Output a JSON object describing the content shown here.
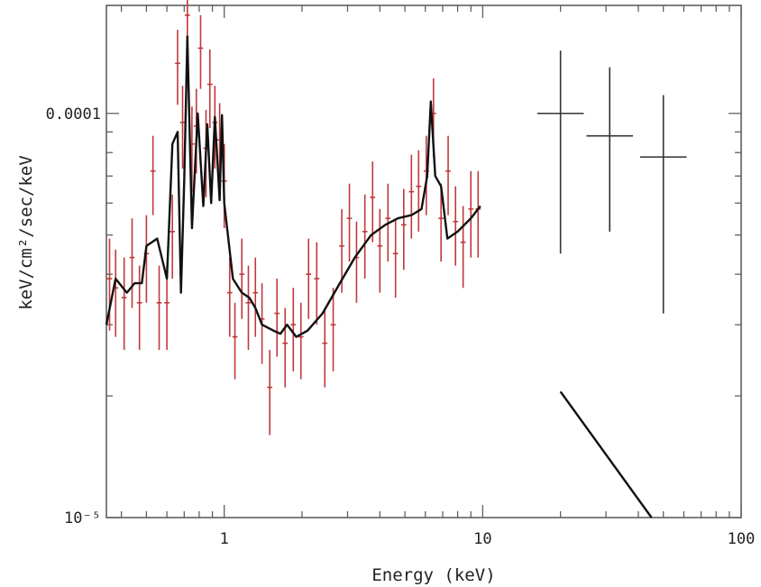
{
  "chart_data": {
    "type": "scatter",
    "title": "",
    "xlabel": "Energy (keV)",
    "ylabel": "keV/cm²/sec/keV",
    "x_scale": "log",
    "y_scale": "log",
    "xlim": [
      0.35,
      100
    ],
    "ylim": [
      1e-05,
      0.000185
    ],
    "grid": false,
    "x_ticks": [
      {
        "value": 1,
        "label": "1"
      },
      {
        "value": 10,
        "label": "10"
      },
      {
        "value": 100,
        "label": "100"
      }
    ],
    "y_ticks": [
      {
        "value": 0.0001,
        "label": "0.0001"
      },
      {
        "value": 1e-05,
        "label": "10⁻⁵"
      }
    ],
    "series": [
      {
        "style": "errorbars",
        "color": "#c0393b",
        "points": [
          [
            0.36,
            3.9e-05,
            0.01,
            1e-05
          ],
          [
            0.38,
            3.7e-05,
            0.01,
            9e-06
          ],
          [
            0.41,
            3.5e-05,
            0.01,
            9e-06
          ],
          [
            0.44,
            4.4e-05,
            0.01,
            1.1e-05
          ],
          [
            0.47,
            3.4e-05,
            0.01,
            8e-06
          ],
          [
            0.5,
            4.5e-05,
            0.01,
            1.1e-05
          ],
          [
            0.53,
            7.2e-05,
            0.01,
            1.6e-05
          ],
          [
            0.56,
            3.4e-05,
            0.01,
            8e-06
          ],
          [
            0.6,
            3.4e-05,
            0.01,
            8e-06
          ],
          [
            0.63,
            5.1e-05,
            0.01,
            1.2e-05
          ],
          [
            0.66,
            0.000133,
            0.01,
            2.8e-05
          ],
          [
            0.69,
            9.5e-05,
            0.01,
            2.2e-05
          ],
          [
            0.72,
            0.000175,
            0.01,
            3.5e-05
          ],
          [
            0.75,
            8.4e-05,
            0.01,
            2e-05
          ],
          [
            0.78,
            9.3e-05,
            0.01,
            2.2e-05
          ],
          [
            0.81,
            0.000145,
            0.01,
            3e-05
          ],
          [
            0.85,
            8.2e-05,
            0.01,
            2e-05
          ],
          [
            0.88,
            0.000118,
            0.01,
            2.6e-05
          ],
          [
            0.92,
            9.5e-05,
            0.01,
            2.2e-05
          ],
          [
            0.96,
            8.6e-05,
            0.01,
            2e-05
          ],
          [
            1.0,
            6.8e-05,
            0.01,
            1.6e-05
          ],
          [
            1.05,
            3.6e-05,
            0.01,
            8e-06
          ],
          [
            1.1,
            2.8e-05,
            0.01,
            6e-06
          ],
          [
            1.17,
            4e-05,
            0.01,
            9e-06
          ],
          [
            1.24,
            3.4e-05,
            0.01,
            8e-06
          ],
          [
            1.32,
            3.6e-05,
            0.01,
            8e-06
          ],
          [
            1.4,
            3.1e-05,
            0.01,
            7e-06
          ],
          [
            1.5,
            2.1e-05,
            0.01,
            5e-06
          ],
          [
            1.6,
            3.2e-05,
            0.01,
            7e-06
          ],
          [
            1.72,
            2.7e-05,
            0.01,
            6e-06
          ],
          [
            1.85,
            3e-05,
            0.01,
            7e-06
          ],
          [
            1.98,
            2.8e-05,
            0.01,
            6e-06
          ],
          [
            2.12,
            4e-05,
            0.01,
            9e-06
          ],
          [
            2.28,
            3.9e-05,
            0.01,
            9e-06
          ],
          [
            2.45,
            2.7e-05,
            0.01,
            6e-06
          ],
          [
            2.64,
            3e-05,
            0.01,
            7e-06
          ],
          [
            2.85,
            4.7e-05,
            0.01,
            1.1e-05
          ],
          [
            3.05,
            5.5e-05,
            0.01,
            1.2e-05
          ],
          [
            3.25,
            4.4e-05,
            0.01,
            1e-05
          ],
          [
            3.5,
            5.1e-05,
            0.01,
            1.2e-05
          ],
          [
            3.75,
            6.2e-05,
            0.01,
            1.4e-05
          ],
          [
            4.0,
            4.7e-05,
            0.01,
            1.1e-05
          ],
          [
            4.3,
            5.5e-05,
            0.01,
            1.2e-05
          ],
          [
            4.6,
            4.5e-05,
            0.01,
            1e-05
          ],
          [
            4.95,
            5.3e-05,
            0.01,
            1.2e-05
          ],
          [
            5.3,
            6.4e-05,
            0.01,
            1.5e-05
          ],
          [
            5.65,
            6.6e-05,
            0.01,
            1.5e-05
          ],
          [
            6.05,
            7.2e-05,
            0.01,
            1.6e-05
          ],
          [
            6.45,
            0.0001,
            0.01,
            2.2e-05
          ],
          [
            6.9,
            5.5e-05,
            0.01,
            1.2e-05
          ],
          [
            7.35,
            7.2e-05,
            0.01,
            1.6e-05
          ],
          [
            7.85,
            5.4e-05,
            0.01,
            1.2e-05
          ],
          [
            8.4,
            4.8e-05,
            0.01,
            1.1e-05
          ],
          [
            9.0,
            5.8e-05,
            0.01,
            1.4e-05
          ],
          [
            9.6,
            5.8e-05,
            0.01,
            1.4e-05
          ]
        ]
      },
      {
        "style": "errorbars",
        "color": "#333333",
        "points": [
          [
            20,
            0.0001,
            0.09,
            5.5e-05,
            4.3e-05
          ],
          [
            31,
            8.8e-05,
            0.09,
            3.7e-05,
            4.2e-05
          ],
          [
            50,
            7.8e-05,
            0.09,
            4.6e-05,
            3.3e-05
          ]
        ]
      },
      {
        "style": "line",
        "color": "#111111",
        "points": [
          [
            0.35,
            3e-05
          ],
          [
            0.38,
            3.9e-05
          ],
          [
            0.42,
            3.6e-05
          ],
          [
            0.45,
            3.8e-05
          ],
          [
            0.48,
            3.8e-05
          ],
          [
            0.5,
            4.7e-05
          ],
          [
            0.55,
            4.9e-05
          ],
          [
            0.6,
            3.9e-05
          ],
          [
            0.63,
            8.4e-05
          ],
          [
            0.66,
            9e-05
          ],
          [
            0.68,
            3.6e-05
          ],
          [
            0.7,
            6.8e-05
          ],
          [
            0.72,
            0.000155
          ],
          [
            0.75,
            5.2e-05
          ],
          [
            0.79,
            0.0001
          ],
          [
            0.83,
            5.9e-05
          ],
          [
            0.86,
            9.4e-05
          ],
          [
            0.89,
            6e-05
          ],
          [
            0.92,
            9.8e-05
          ],
          [
            0.96,
            6.1e-05
          ],
          [
            0.98,
            9.9e-05
          ],
          [
            1.0,
            6e-05
          ],
          [
            1.08,
            3.9e-05
          ],
          [
            1.17,
            3.6e-05
          ],
          [
            1.25,
            3.5e-05
          ],
          [
            1.32,
            3.3e-05
          ],
          [
            1.4,
            3e-05
          ],
          [
            1.55,
            2.9e-05
          ],
          [
            1.65,
            2.85e-05
          ],
          [
            1.75,
            3e-05
          ],
          [
            1.9,
            2.8e-05
          ],
          [
            2.1,
            2.9e-05
          ],
          [
            2.4,
            3.2e-05
          ],
          [
            2.8,
            3.8e-05
          ],
          [
            3.2,
            4.4e-05
          ],
          [
            3.7,
            5e-05
          ],
          [
            4.2,
            5.3e-05
          ],
          [
            4.7,
            5.5e-05
          ],
          [
            5.3,
            5.6e-05
          ],
          [
            5.8,
            5.8e-05
          ],
          [
            6.1,
            7e-05
          ],
          [
            6.3,
            0.000107
          ],
          [
            6.55,
            7e-05
          ],
          [
            6.9,
            6.6e-05
          ],
          [
            7.3,
            4.9e-05
          ],
          [
            8.0,
            5.1e-05
          ],
          [
            9.0,
            5.5e-05
          ],
          [
            9.8,
            5.9e-05
          ]
        ]
      },
      {
        "style": "line",
        "color": "#111111",
        "points": [
          [
            20,
            2.05e-05
          ],
          [
            45,
            1e-05
          ]
        ]
      }
    ]
  }
}
